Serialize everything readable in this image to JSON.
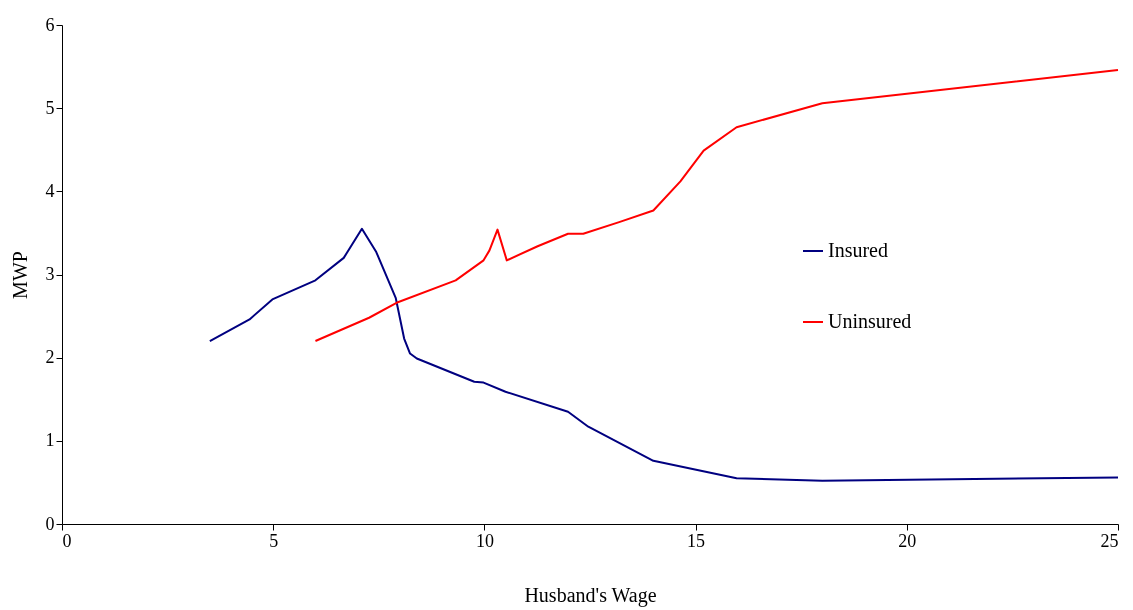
{
  "chart_data": {
    "type": "line",
    "xlabel": "Husband's Wage",
    "ylabel": "MWP",
    "xlim": [
      0,
      25
    ],
    "xticks": [
      0,
      5,
      10,
      15,
      20,
      25
    ],
    "ylim": [
      0,
      6
    ],
    "yticks": [
      0,
      1,
      2,
      3,
      4,
      5,
      6
    ],
    "grid": false,
    "legend": "right",
    "marker": "none",
    "line_style": "solid",
    "series": [
      {
        "name": "Insured",
        "color": "#000080",
        "x": [
          3.5,
          4.44,
          4.98,
          6.0,
          6.67,
          7.1,
          7.44,
          7.9,
          8.1,
          8.24,
          8.4,
          9.76,
          9.98,
          10.5,
          11.98,
          12.46,
          14.0,
          15.97,
          18.0,
          25
        ],
        "values": [
          2.2,
          2.46,
          2.7,
          2.93,
          3.2,
          3.55,
          3.27,
          2.72,
          2.23,
          2.05,
          1.99,
          1.71,
          1.7,
          1.59,
          1.35,
          1.17,
          0.76,
          0.55,
          0.52,
          0.56
        ]
      },
      {
        "name": "Uninsured",
        "color": "#ff0000",
        "x": [
          6.0,
          7.27,
          7.92,
          9.32,
          9.98,
          10.12,
          10.31,
          10.53,
          11.26,
          11.98,
          12.34,
          13.19,
          14.0,
          14.64,
          15.19,
          15.97,
          18.0,
          25
        ],
        "values": [
          2.2,
          2.48,
          2.66,
          2.93,
          3.17,
          3.29,
          3.54,
          3.17,
          3.34,
          3.49,
          3.49,
          3.63,
          3.77,
          4.12,
          4.49,
          4.77,
          5.06,
          5.46
        ]
      }
    ]
  }
}
